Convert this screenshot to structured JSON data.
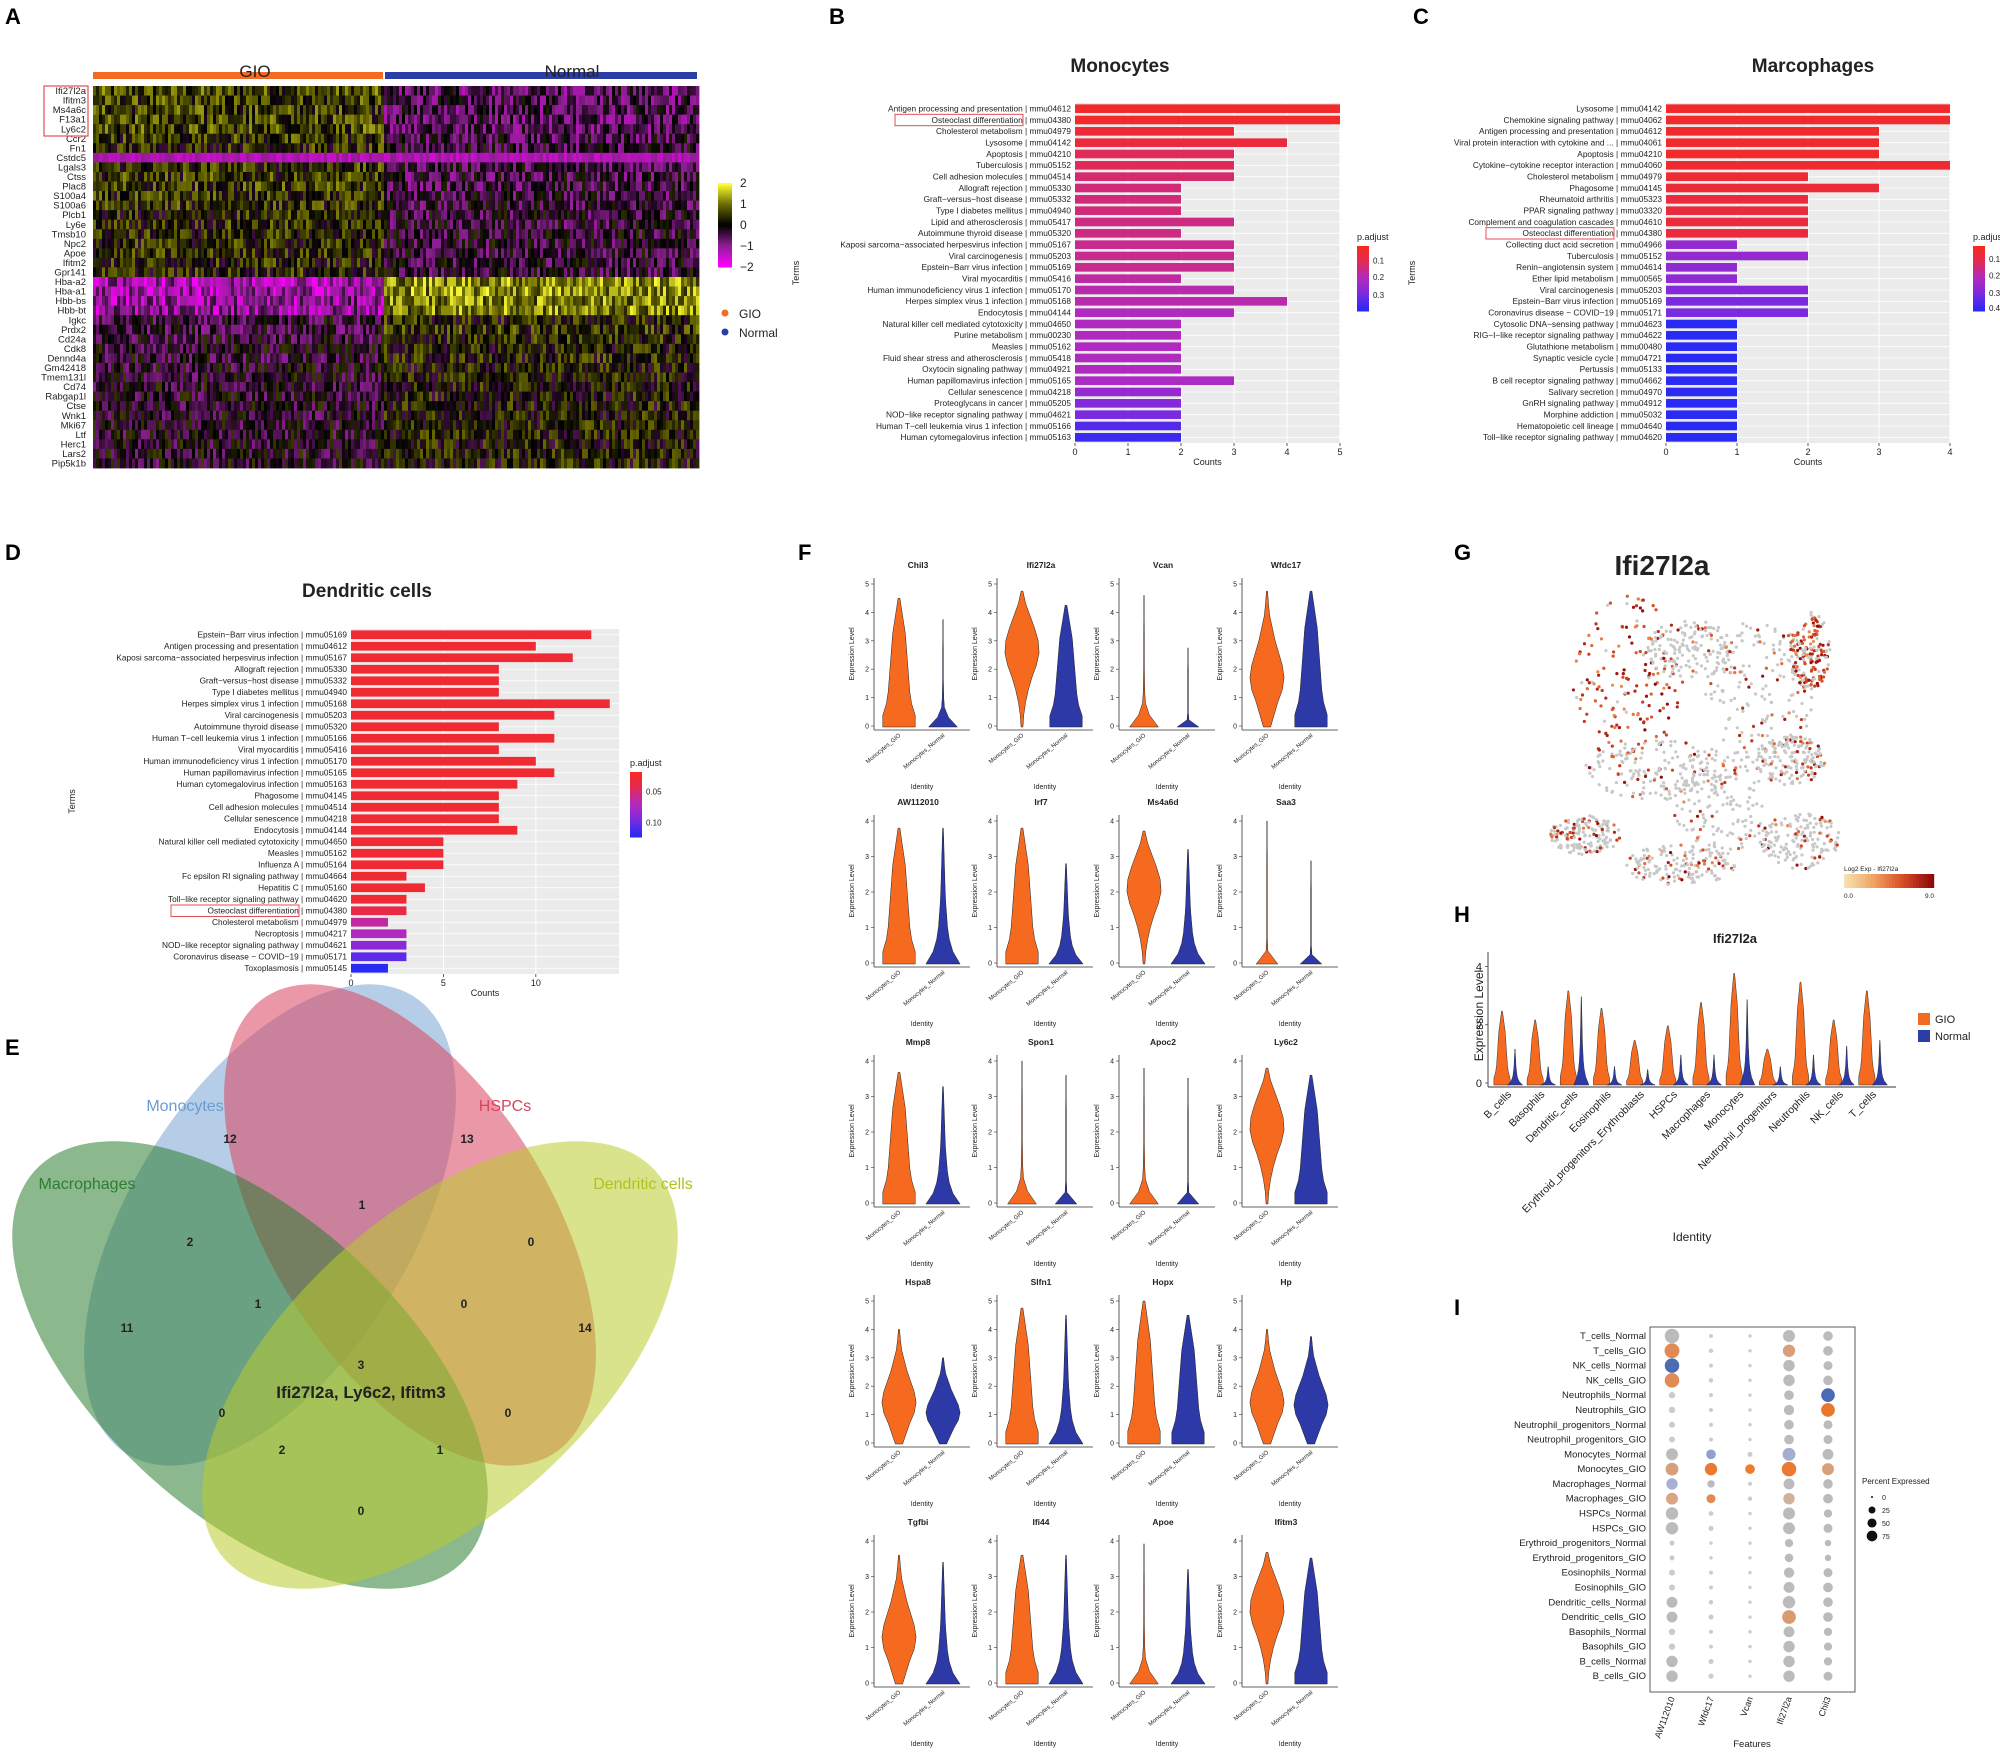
{
  "panel_letters": {
    "A": "A",
    "B": "B",
    "C": "C",
    "D": "D",
    "E": "E",
    "F": "F",
    "G": "G",
    "H": "H",
    "I": "I"
  },
  "chart_data": [
    {
      "panel": "A",
      "type": "heatmap",
      "groups": [
        "GIO",
        "Normal"
      ],
      "group_colors": [
        "#f26b21",
        "#2b3ea6"
      ],
      "genes": [
        "Ifi27l2a",
        "Ifitm3",
        "Ms4a6c",
        "F13a1",
        "Ly6c2",
        "Ccr2",
        "Fn1",
        "Cstdc5",
        "Lgals3",
        "Ctss",
        "Plac8",
        "S100a4",
        "S100a6",
        "Plcb1",
        "Ly6e",
        "Tmsb10",
        "Npc2",
        "Apoe",
        "Ifitm2",
        "Gpr141",
        "Hba-a2",
        "Hba-a1",
        "Hbb-bs",
        "Hbb-bt",
        "Igkc",
        "Prdx2",
        "Cd24a",
        "Cdk8",
        "Dennd4a",
        "Gm42418",
        "Tmem131l",
        "Cd74",
        "Rabgap1l",
        "Ctse",
        "Wnk1",
        "Mki67",
        "Ltf",
        "Herc1",
        "Lars2",
        "Pip5k1b"
      ],
      "highlighted_genes": [
        "Ifi27l2a",
        "Ifitm3",
        "Ms4a6c",
        "F13a1",
        "Ly6c2"
      ],
      "color_scale": {
        "ticks": [
          2,
          1,
          0,
          -1,
          -2
        ],
        "tick_labels": [
          "2",
          "1",
          "0",
          "−1",
          "−2"
        ]
      },
      "legend": [
        {
          "label": "GIO",
          "color": "#f26b21"
        },
        {
          "label": "Normal",
          "color": "#2b3ea6"
        }
      ]
    },
    {
      "panel": "B",
      "type": "bar",
      "title": "Monocytes",
      "xlabel": "Counts",
      "ylabel": "Terms",
      "xlim": [
        0,
        5
      ],
      "xticks": [
        "0",
        "1",
        "2",
        "3",
        "4",
        "5"
      ],
      "legend_title": "p.adjust",
      "legend_ticks": [
        "0.1",
        "0.2",
        "0.3"
      ],
      "highlight": "Osteoclast differentiation | mmu04380",
      "categories": [
        "Antigen processing and presentation | mmu04612",
        "Osteoclast differentiation | mmu04380",
        "Cholesterol metabolism | mmu04979",
        "Lysosome | mmu04142",
        "Apoptosis | mmu04210",
        "Tuberculosis | mmu05152",
        "Cell adhesion molecules | mmu04514",
        "Allograft rejection | mmu05330",
        "Graft−versus−host disease | mmu05332",
        "Type I diabetes mellitus | mmu04940",
        "Lipid and atherosclerosis | mmu05417",
        "Autoimmune thyroid disease | mmu05320",
        "Kaposi sarcoma−associated herpesvirus infection | mmu05167",
        "Viral carcinogenesis | mmu05203",
        "Epstein−Barr virus infection | mmu05169",
        "Viral myocarditis | mmu05416",
        "Human immunodeficiency virus 1 infection | mmu05170",
        "Herpes simplex virus 1 infection | mmu05168",
        "Endocytosis | mmu04144",
        "Natural killer cell mediated cytotoxicity | mmu04650",
        "Purine metabolism | mmu00230",
        "Measles | mmu05162",
        "Fluid shear stress and atherosclerosis | mmu05418",
        "Oxytocin signaling pathway | mmu04921",
        "Human papillomavirus infection | mmu05165",
        "Cellular senescence | mmu04218",
        "Proteoglycans in cancer | mmu05205",
        "NOD−like receptor signaling pathway | mmu04621",
        "Human T−cell leukemia virus 1 infection | mmu05166",
        "Human cytomegalovirus infection | mmu05163"
      ],
      "values": [
        5,
        5,
        3,
        4,
        3,
        3,
        3,
        2,
        2,
        2,
        3,
        2,
        3,
        3,
        3,
        2,
        3,
        4,
        3,
        2,
        2,
        2,
        2,
        2,
        3,
        2,
        2,
        2,
        2,
        2
      ],
      "padj": [
        0.02,
        0.02,
        0.04,
        0.05,
        0.1,
        0.1,
        0.12,
        0.13,
        0.13,
        0.13,
        0.14,
        0.14,
        0.15,
        0.15,
        0.15,
        0.17,
        0.18,
        0.18,
        0.2,
        0.2,
        0.2,
        0.2,
        0.2,
        0.2,
        0.21,
        0.25,
        0.28,
        0.3,
        0.35,
        0.38
      ]
    },
    {
      "panel": "C",
      "type": "bar",
      "title": "Marcophages",
      "xlabel": "Counts",
      "ylabel": "Terms",
      "xlim": [
        0,
        4
      ],
      "xticks": [
        "0",
        "1",
        "2",
        "3",
        "4"
      ],
      "legend_title": "p.adjust",
      "legend_ticks": [
        "0.1",
        "0.2",
        "0.3",
        "0.4"
      ],
      "highlight": "Osteoclast differentiation | mmu04380",
      "categories": [
        "Lysosome | mmu04142",
        "Chemokine signaling pathway | mmu04062",
        "Antigen processing and presentation | mmu04612",
        "Viral protein interaction with cytokine and ... | mmu04061",
        "Apoptosis | mmu04210",
        "Cytokine−cytokine receptor interaction | mmu04060",
        "Cholesterol metabolism | mmu04979",
        "Phagosome | mmu04145",
        "Rheumatoid arthritis | mmu05323",
        "PPAR signaling pathway | mmu03320",
        "Complement and coagulation cascades | mmu04610",
        "Osteoclast differentiation | mmu04380",
        "Collecting duct acid secretion | mmu04966",
        "Tuberculosis | mmu05152",
        "Renin−angiotensin system | mmu04614",
        "Ether lipid metabolism | mmu00565",
        "Viral carcinogenesis | mmu05203",
        "Epstein−Barr virus infection | mmu05169",
        "Coronavirus disease − COVID−19 | mmu05171",
        "Cytosolic DNA−sensing pathway | mmu04623",
        "RIG−I−like receptor signaling pathway | mmu04622",
        "Glutathione metabolism | mmu00480",
        "Synaptic vesicle cycle | mmu04721",
        "Pertussis | mmu05133",
        "B cell receptor signaling pathway | mmu04662",
        "Salivary secretion | mmu04970",
        "GnRH signaling pathway | mmu04912",
        "Morphine addiction | mmu05032",
        "Hematopoietic cell lineage | mmu04640",
        "Toll−like receptor signaling pathway | mmu04620"
      ],
      "values": [
        4,
        4,
        3,
        3,
        3,
        4,
        2,
        3,
        2,
        2,
        2,
        2,
        1,
        2,
        1,
        1,
        2,
        2,
        2,
        1,
        1,
        1,
        1,
        1,
        1,
        1,
        1,
        1,
        1,
        1
      ],
      "padj": [
        0.02,
        0.02,
        0.02,
        0.02,
        0.02,
        0.03,
        0.03,
        0.04,
        0.05,
        0.05,
        0.05,
        0.05,
        0.25,
        0.25,
        0.26,
        0.26,
        0.28,
        0.3,
        0.3,
        0.4,
        0.4,
        0.4,
        0.4,
        0.4,
        0.4,
        0.4,
        0.4,
        0.4,
        0.4,
        0.4
      ]
    },
    {
      "panel": "D",
      "type": "bar",
      "title": "Dendritic cells",
      "xlabel": "Counts",
      "ylabel": "Terms",
      "xlim": [
        0,
        14.5
      ],
      "xticks": [
        "0",
        "5",
        "10"
      ],
      "legend_title": "p.adjust",
      "legend_ticks": [
        "0.05",
        "0.10"
      ],
      "highlight": "Osteoclast differentiation | mmu04380",
      "categories": [
        "Epstein−Barr virus infection | mmu05169",
        "Antigen processing and presentation | mmu04612",
        "Kaposi sarcoma−associated herpesvirus infection | mmu05167",
        "Allograft rejection | mmu05330",
        "Graft−versus−host disease | mmu05332",
        "Type I diabetes mellitus | mmu04940",
        "Herpes simplex virus 1 infection | mmu05168",
        "Viral carcinogenesis | mmu05203",
        "Autoimmune thyroid disease | mmu05320",
        "Human T−cell leukemia virus 1 infection | mmu05166",
        "Viral myocarditis | mmu05416",
        "Human immunodeficiency virus 1 infection | mmu05170",
        "Human papillomavirus infection | mmu05165",
        "Human cytomegalovirus infection | mmu05163",
        "Phagosome | mmu04145",
        "Cell adhesion molecules | mmu04514",
        "Cellular senescence | mmu04218",
        "Endocytosis | mmu04144",
        "Natural killer cell mediated cytotoxicity | mmu04650",
        "Measles | mmu05162",
        "Influenza A | mmu05164",
        "Fc epsilon RI signaling pathway | mmu04664",
        "Hepatitis C | mmu05160",
        "Toll−like receptor signaling pathway | mmu04620",
        "Osteoclast differentiation | mmu04380",
        "Cholesterol metabolism | mmu04979",
        "Necroptosis | mmu04217",
        "NOD−like receptor signaling pathway | mmu04621",
        "Coronavirus disease − COVID−19 | mmu05171",
        "Toxoplasmosis | mmu05145"
      ],
      "values": [
        13,
        10,
        12,
        8,
        8,
        8,
        14,
        11,
        8,
        11,
        8,
        10,
        11,
        9,
        8,
        8,
        8,
        9,
        5,
        5,
        5,
        3,
        4,
        3,
        3,
        2,
        3,
        3,
        3,
        2
      ],
      "padj": [
        0.01,
        0.01,
        0.01,
        0.01,
        0.01,
        0.01,
        0.01,
        0.01,
        0.01,
        0.01,
        0.01,
        0.01,
        0.01,
        0.01,
        0.01,
        0.01,
        0.01,
        0.01,
        0.01,
        0.01,
        0.01,
        0.01,
        0.01,
        0.01,
        0.02,
        0.05,
        0.06,
        0.08,
        0.1,
        0.12
      ]
    },
    {
      "panel": "E",
      "type": "venn",
      "sets": [
        {
          "name": "Monocytes",
          "color": "#6b9cd0"
        },
        {
          "name": "HSPCs",
          "color": "#d9435f"
        },
        {
          "name": "Macrophages",
          "color": "#2e7d32"
        },
        {
          "name": "Dendritic cells",
          "color": "#b9cc2e"
        }
      ],
      "region_counts": [
        "12",
        "13",
        "2",
        "1",
        "0",
        "11",
        "14",
        "1",
        "0",
        "3",
        "0",
        "0",
        "2",
        "1",
        "0"
      ],
      "center_label": "Ifi27l2a, Ly6c2, Ifitm3"
    },
    {
      "panel": "F",
      "type": "violin",
      "genes": [
        "Chil3",
        "Ifi27l2a",
        "Vcan",
        "Wfdc17",
        "AW112010",
        "Irf7",
        "Ms4a6d",
        "Saa3",
        "Mmp8",
        "Spon1",
        "Apoc2",
        "Ly6c2",
        "Hspa8",
        "Slfn1",
        "Hopx",
        "Hp",
        "Tgfbi",
        "Ifi44",
        "Apoe",
        "Ifitm3"
      ],
      "ymax": [
        5,
        5,
        5,
        5,
        4,
        4,
        4,
        4,
        4,
        4,
        4,
        4,
        5,
        5,
        5,
        5,
        4,
        4,
        4,
        4
      ],
      "groups": [
        "Monocytes_GIO",
        "Monocytes_Normal"
      ],
      "xlabel": "Identity",
      "ylabel": "Expression Level"
    },
    {
      "panel": "G",
      "type": "scatter",
      "title": "Ifi27l2a",
      "legend_title": "Log2 Exp - Ifi27l2a",
      "legend_range": [
        "0.0",
        "9.0"
      ]
    },
    {
      "panel": "H",
      "type": "violin",
      "title": "Ifi27l2a",
      "categories": [
        "B_cells",
        "Basophils",
        "Dendritic_cells",
        "Eosinophils",
        "Erythroid_progenitors_Erythroblasts",
        "HSPCs",
        "Macrophages",
        "Monocytes",
        "Neutrophil_progenitors",
        "Neutrophils",
        "NK_cells",
        "T_cells"
      ],
      "gio_values": [
        2.5,
        2.2,
        3.2,
        2.6,
        1.5,
        2.0,
        2.8,
        3.8,
        1.2,
        3.5,
        2.2,
        3.2
      ],
      "normal_values": [
        1.2,
        0.6,
        3.0,
        0.6,
        0.5,
        1.0,
        1.0,
        2.9,
        0.6,
        1.0,
        1.3,
        1.5
      ],
      "yticks": [
        "0",
        "2",
        "4"
      ],
      "xlabel": "Identity",
      "ylabel": "Expression Level",
      "legend": [
        {
          "label": "GIO",
          "color": "#f26b21"
        },
        {
          "label": "Normal",
          "color": "#2b3ea6"
        }
      ]
    },
    {
      "panel": "I",
      "type": "dot",
      "features": [
        "AW112010",
        "Wfdc17",
        "Vcan",
        "Ifi27l2a",
        "Chil3"
      ],
      "rows": [
        "T_cells_Normal",
        "T_cells_GIO",
        "NK_cells_Normal",
        "NK_cells_GIO",
        "Neutrophils_Normal",
        "Neutrophils_GIO",
        "Neutrophil_progenitors_Normal",
        "Neutrophil_progenitors_GIO",
        "Monocytes_Normal",
        "Monocytes_GIO",
        "Macrophages_Normal",
        "Macrophages_GIO",
        "HSPCs_Normal",
        "HSPCs_GIO",
        "Erythroid_progenitors_Normal",
        "Erythroid_progenitors_GIO",
        "Eosinophils_Normal",
        "Eosinophils_GIO",
        "Dendritic_cells_Normal",
        "Dendritic_cells_GIO",
        "Basophils_Normal",
        "Basophils_GIO",
        "B_cells_Normal",
        "B_cells_GIO"
      ],
      "xlabel": "Features",
      "size_legend_title": "Percent Expressed",
      "size_legend_values": [
        "0",
        "25",
        "50",
        "75"
      ],
      "percent": [
        [
          80,
          2,
          1,
          50,
          30
        ],
        [
          85,
          3,
          1,
          55,
          30
        ],
        [
          80,
          2,
          1,
          45,
          25
        ],
        [
          80,
          3,
          1,
          45,
          30
        ],
        [
          10,
          2,
          1,
          30,
          70
        ],
        [
          10,
          2,
          1,
          35,
          70
        ],
        [
          8,
          2,
          1,
          30,
          25
        ],
        [
          8,
          2,
          1,
          30,
          25
        ],
        [
          50,
          30,
          5,
          60,
          40
        ],
        [
          60,
          55,
          30,
          80,
          50
        ],
        [
          45,
          15,
          2,
          40,
          30
        ],
        [
          50,
          25,
          3,
          45,
          30
        ],
        [
          55,
          4,
          1,
          50,
          20
        ],
        [
          55,
          5,
          1,
          50,
          25
        ],
        [
          5,
          1,
          1,
          20,
          10
        ],
        [
          5,
          1,
          1,
          22,
          10
        ],
        [
          8,
          2,
          1,
          35,
          25
        ],
        [
          8,
          2,
          1,
          40,
          30
        ],
        [
          40,
          3,
          1,
          55,
          30
        ],
        [
          40,
          5,
          1,
          70,
          30
        ],
        [
          10,
          2,
          1,
          40,
          20
        ],
        [
          10,
          2,
          1,
          45,
          20
        ],
        [
          45,
          5,
          1,
          45,
          20
        ],
        [
          45,
          5,
          1,
          45,
          25
        ]
      ],
      "color": [
        [
          "#bbbbbb",
          "#cccccc",
          "#cccccc",
          "#bbbbbb",
          "#bbbbbb"
        ],
        [
          "#e08a55",
          "#cccccc",
          "#cccccc",
          "#d7a07a",
          "#bbbbbb"
        ],
        [
          "#4d6bb3",
          "#cccccc",
          "#cccccc",
          "#bbbbbb",
          "#bbbbbb"
        ],
        [
          "#e08a55",
          "#cccccc",
          "#cccccc",
          "#bbbbbb",
          "#bbbbbb"
        ],
        [
          "#cccccc",
          "#cccccc",
          "#cccccc",
          "#bbbbbb",
          "#4d6bb3"
        ],
        [
          "#cccccc",
          "#cccccc",
          "#cccccc",
          "#bbbbbb",
          "#e9782f"
        ],
        [
          "#cccccc",
          "#cccccc",
          "#cccccc",
          "#bbbbbb",
          "#bbbbbb"
        ],
        [
          "#cccccc",
          "#cccccc",
          "#cccccc",
          "#bbbbbb",
          "#bbbbbb"
        ],
        [
          "#bbbbbb",
          "#8fa1cc",
          "#cccccc",
          "#a5aed0",
          "#bbbbbb"
        ],
        [
          "#d7a07a",
          "#ea7a32",
          "#ef7b2c",
          "#ea7a32",
          "#d7a07a"
        ],
        [
          "#a8b0d2",
          "#bbbbbb",
          "#cccccc",
          "#bbbbbb",
          "#bbbbbb"
        ],
        [
          "#d9a585",
          "#e08a55",
          "#cccccc",
          "#d2b19a",
          "#bbbbbb"
        ],
        [
          "#bbbbbb",
          "#cccccc",
          "#cccccc",
          "#bbbbbb",
          "#bbbbbb"
        ],
        [
          "#bbbbbb",
          "#cccccc",
          "#cccccc",
          "#bbbbbb",
          "#bbbbbb"
        ],
        [
          "#cccccc",
          "#cccccc",
          "#cccccc",
          "#bbbbbb",
          "#bbbbbb"
        ],
        [
          "#cccccc",
          "#cccccc",
          "#cccccc",
          "#bbbbbb",
          "#bbbbbb"
        ],
        [
          "#cccccc",
          "#cccccc",
          "#cccccc",
          "#bbbbbb",
          "#bbbbbb"
        ],
        [
          "#cccccc",
          "#cccccc",
          "#cccccc",
          "#bbbbbb",
          "#bbbbbb"
        ],
        [
          "#bbbbbb",
          "#cccccc",
          "#cccccc",
          "#bbbbbb",
          "#bbbbbb"
        ],
        [
          "#bbbbbb",
          "#cccccc",
          "#cccccc",
          "#d89a6e",
          "#bbbbbb"
        ],
        [
          "#cccccc",
          "#cccccc",
          "#cccccc",
          "#bbbbbb",
          "#bbbbbb"
        ],
        [
          "#cccccc",
          "#cccccc",
          "#cccccc",
          "#bbbbbb",
          "#bbbbbb"
        ],
        [
          "#bbbbbb",
          "#cccccc",
          "#cccccc",
          "#bbbbbb",
          "#bbbbbb"
        ],
        [
          "#bbbbbb",
          "#cccccc",
          "#cccccc",
          "#bbbbbb",
          "#bbbbbb"
        ]
      ]
    }
  ]
}
